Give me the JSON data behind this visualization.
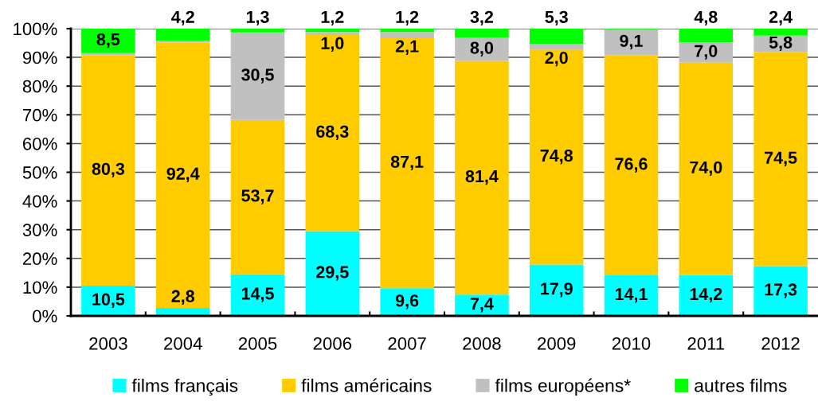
{
  "chart_data": {
    "type": "bar",
    "stacked": true,
    "categories": [
      "2003",
      "2004",
      "2005",
      "2006",
      "2007",
      "2008",
      "2009",
      "2010",
      "2011",
      "2012"
    ],
    "series": [
      {
        "name": "films français",
        "color": "#00ffff",
        "values": [
          10.5,
          2.8,
          14.5,
          29.5,
          9.6,
          7.4,
          17.9,
          14.1,
          14.2,
          17.3
        ],
        "value_labels": [
          "10,5",
          "2,8",
          "14,5",
          "29,5",
          "9,6",
          "7,4",
          "17,9",
          "14,1",
          "14,2",
          "17,3"
        ]
      },
      {
        "name": "films américains",
        "color": "#ffcc00",
        "values": [
          80.3,
          92.4,
          53.7,
          68.3,
          87.1,
          81.4,
          74.8,
          76.6,
          74.0,
          74.5
        ],
        "value_labels": [
          "80,3",
          "92,4",
          "53,7",
          "68,3",
          "87,1",
          "81,4",
          "74,8",
          "76,6",
          "74,0",
          "74,5"
        ]
      },
      {
        "name": "films européens*",
        "color": "#c0c0c0",
        "values": [
          0.7,
          0.6,
          30.5,
          1.0,
          2.1,
          8.0,
          2.0,
          9.1,
          7.0,
          5.8
        ],
        "value_labels": [
          null,
          null,
          "30,5",
          "1,0",
          "2,1",
          "8,0",
          "2,0",
          "9,1",
          "7,0",
          "5,8"
        ]
      },
      {
        "name": "autres films",
        "color": "#00ff00",
        "values": [
          8.5,
          4.2,
          1.3,
          1.2,
          1.2,
          3.2,
          5.3,
          0.2,
          4.8,
          2.4
        ],
        "value_labels": [
          "8,5",
          "4,2",
          "1,3",
          "1,2",
          "1,2",
          "3,2",
          "5,3",
          null,
          "4,8",
          "2,4"
        ]
      }
    ],
    "ylim": [
      0,
      100
    ],
    "yticks": [
      {
        "value": 0,
        "label": "0%"
      },
      {
        "value": 10,
        "label": "10%"
      },
      {
        "value": 20,
        "label": "20%"
      },
      {
        "value": 30,
        "label": "30%"
      },
      {
        "value": 40,
        "label": "40%"
      },
      {
        "value": 50,
        "label": "50%"
      },
      {
        "value": 60,
        "label": "60%"
      },
      {
        "value": 70,
        "label": "70%"
      },
      {
        "value": 80,
        "label": "80%"
      },
      {
        "value": 90,
        "label": "90%"
      },
      {
        "value": 100,
        "label": "100%"
      }
    ],
    "grid": "y",
    "legend": "bottom"
  }
}
